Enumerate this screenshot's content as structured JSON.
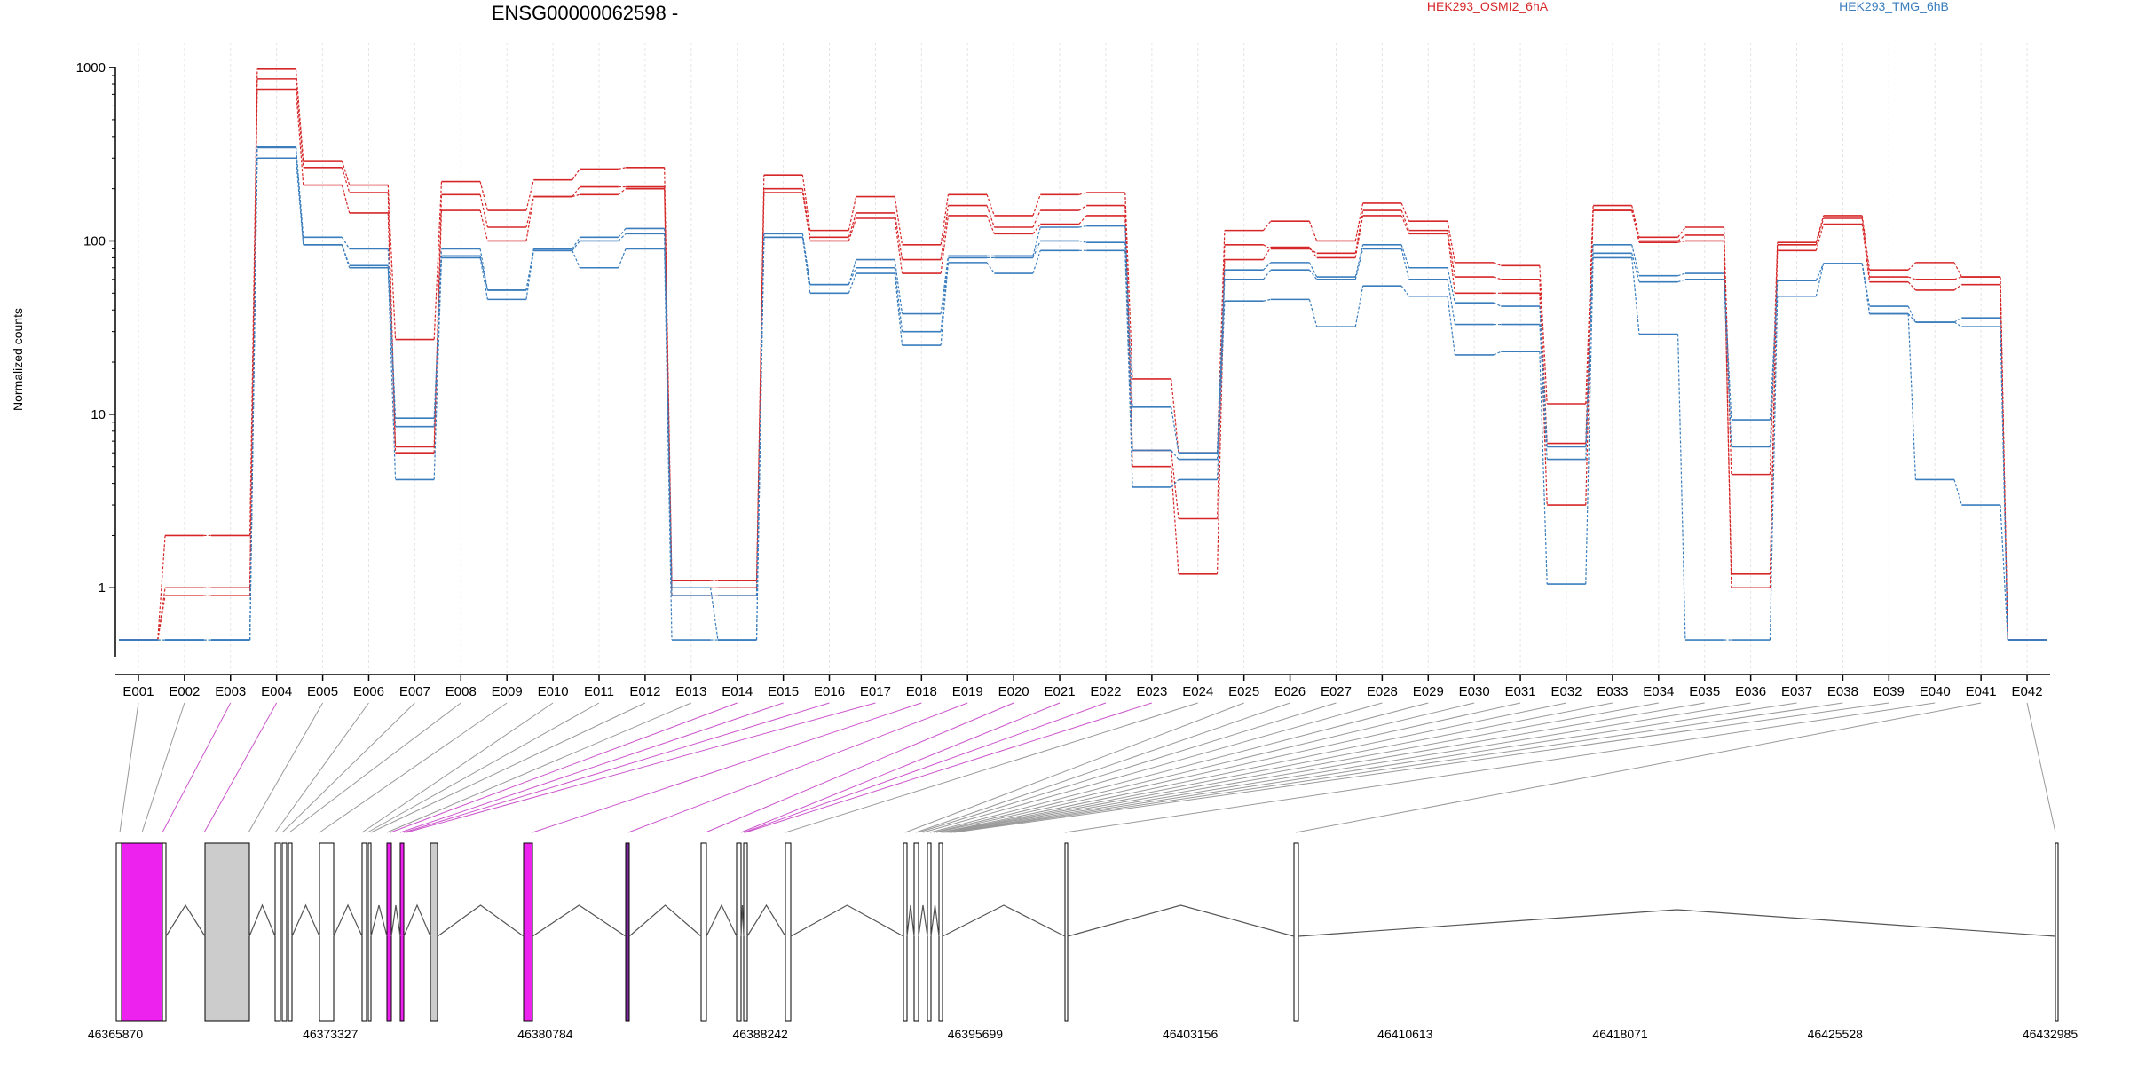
{
  "header": {
    "title": "ENSG00000062598 -",
    "legend": [
      {
        "name": "HEK293_OSMI2_6hA",
        "color": "#d62728"
      },
      {
        "name": "HEK293_TMG_6hB",
        "color": "#3a7dbd"
      }
    ]
  },
  "chart_data": {
    "type": "line",
    "ylabel": "Normalized counts",
    "yscale": "log",
    "ylim": [
      0.4,
      1100
    ],
    "yticks": [
      {
        "v": 1,
        "label": "1"
      },
      {
        "v": 10,
        "label": "10"
      },
      {
        "v": 100,
        "label": "100"
      },
      {
        "v": 1000,
        "label": "1000"
      }
    ],
    "categories": [
      "E001",
      "E002",
      "E003",
      "E004",
      "E005",
      "E006",
      "E007",
      "E008",
      "E009",
      "E010",
      "E011",
      "E012",
      "E013",
      "E014",
      "E015",
      "E016",
      "E017",
      "E018",
      "E019",
      "E020",
      "E021",
      "E022",
      "E023",
      "E024",
      "E025",
      "E026",
      "E027",
      "E028",
      "E029",
      "E030",
      "E031",
      "E032",
      "E033",
      "E034",
      "E035",
      "E036",
      "E037",
      "E038",
      "E039",
      "E040",
      "E041",
      "E042"
    ],
    "series": [
      {
        "group": 0,
        "values": [
          0.5,
          2,
          2,
          980,
          290,
          210,
          27,
          220,
          150,
          225,
          260,
          265,
          1.1,
          1.1,
          240,
          115,
          180,
          95,
          185,
          140,
          185,
          190,
          16,
          6,
          115,
          130,
          100,
          165,
          130,
          75,
          72,
          11.5,
          160,
          105,
          120,
          4.5,
          98,
          140,
          68,
          75,
          62,
          0.5
        ]
      },
      {
        "group": 0,
        "values": [
          0.5,
          1,
          1,
          860,
          265,
          190,
          6.5,
          185,
          120,
          180,
          205,
          205,
          1.0,
          1.0,
          200,
          105,
          145,
          78,
          160,
          120,
          150,
          160,
          6.2,
          2.5,
          95,
          90,
          85,
          150,
          115,
          62,
          60,
          6.8,
          150,
          100,
          108,
          1.0,
          95,
          135,
          62,
          60,
          62,
          0.5
        ]
      },
      {
        "group": 0,
        "values": [
          0.5,
          0.9,
          0.9,
          750,
          210,
          145,
          6.0,
          150,
          100,
          180,
          185,
          200,
          0.9,
          0.9,
          190,
          100,
          135,
          65,
          140,
          110,
          125,
          140,
          5.0,
          1.2,
          78,
          92,
          80,
          140,
          110,
          50,
          50,
          3.0,
          150,
          98,
          100,
          1.2,
          88,
          125,
          58,
          52,
          56,
          0.5
        ]
      },
      {
        "group": 1,
        "values": [
          0.5,
          0.5,
          0.5,
          350,
          105,
          90,
          9.5,
          90,
          52,
          90,
          105,
          118,
          1.0,
          0.5,
          110,
          56,
          78,
          38,
          82,
          82,
          120,
          122,
          11,
          6,
          68,
          75,
          62,
          95,
          70,
          44,
          42,
          6.5,
          95,
          63,
          65,
          9.3,
          59,
          74,
          42,
          34,
          36,
          0.5
        ]
      },
      {
        "group": 1,
        "values": [
          0.5,
          0.5,
          0.5,
          345,
          95,
          72,
          8.5,
          82,
          52,
          88,
          100,
          110,
          0.9,
          0.9,
          105,
          56,
          70,
          30,
          80,
          80,
          100,
          98,
          6.2,
          5.5,
          60,
          68,
          60,
          90,
          60,
          33,
          33,
          5.5,
          85,
          58,
          60,
          6.5,
          59,
          74,
          38,
          34,
          32,
          0.5
        ]
      },
      {
        "group": 1,
        "values": [
          0.5,
          0.5,
          0.5,
          300,
          95,
          70,
          4.2,
          80,
          46,
          88,
          70,
          90,
          0.5,
          0.5,
          105,
          50,
          65,
          25,
          75,
          65,
          88,
          88,
          3.8,
          4.2,
          45,
          46,
          32,
          55,
          48,
          22,
          23,
          1.05,
          80,
          29,
          0.5,
          0.5,
          48,
          74,
          38,
          4.2,
          3.0,
          0.5
        ]
      }
    ],
    "gene_axis": {
      "ticks": [
        "46365870",
        "46373327",
        "46380784",
        "46388242",
        "46395699",
        "46403156",
        "46410613",
        "46418071",
        "46425528",
        "46432985"
      ]
    },
    "colors": {
      "group0": "#d62728",
      "group1": "#3a7dbd",
      "highlight": "#ee22ee",
      "exon_grey": "#cccccc"
    }
  }
}
